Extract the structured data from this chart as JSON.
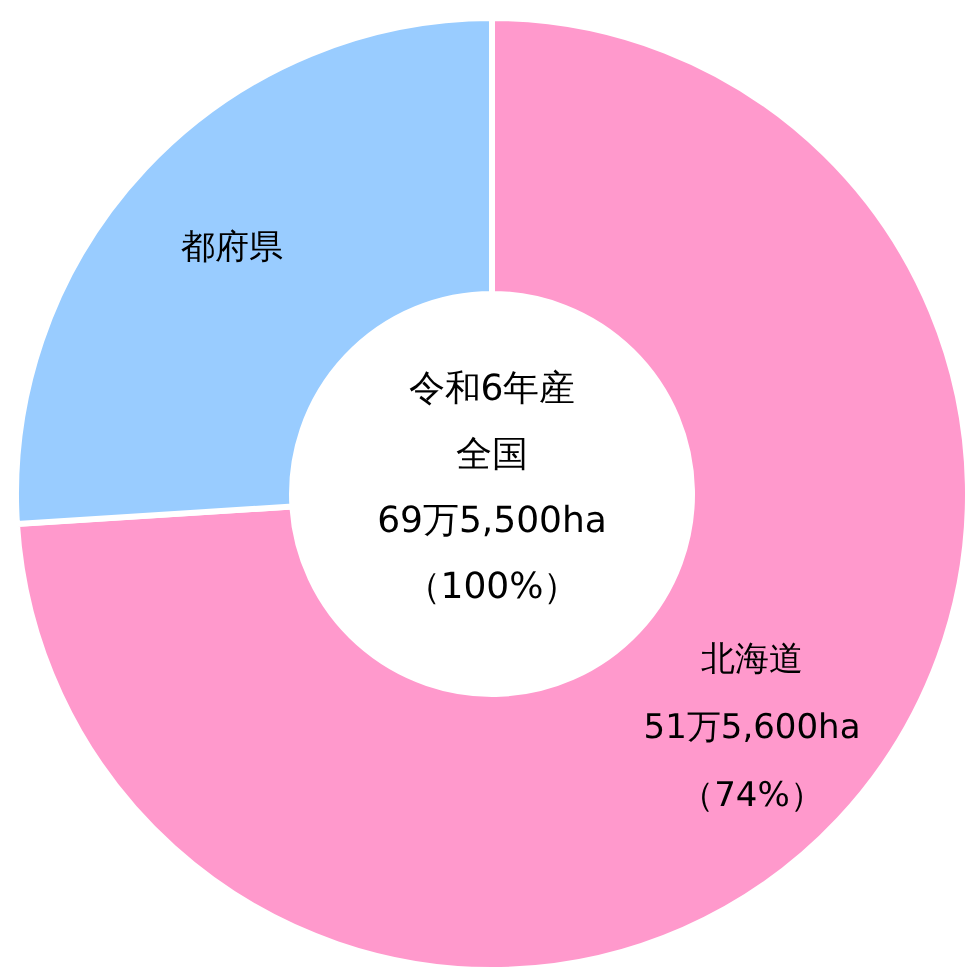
{
  "chart_data": {
    "type": "donut",
    "title": "令和6年産",
    "annotations": [
      "全国",
      "69万5,500ha",
      "（100%）"
    ],
    "categories": [
      "北海道",
      "都府県"
    ],
    "values": [
      74,
      26
    ],
    "colors": [
      "#ff99cc",
      "#99ccff"
    ],
    "value_labels": [
      "51万5,600ha\n（74%）",
      null
    ]
  }
}
